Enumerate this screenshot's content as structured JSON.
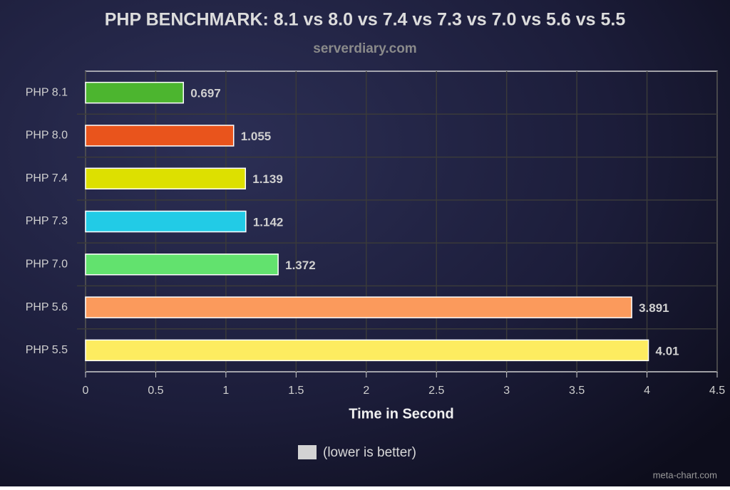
{
  "chart_data": {
    "type": "bar",
    "orientation": "horizontal",
    "title": "PHP BENCHMARK: 8.1 vs 8.0 vs 7.4 vs 7.3 vs 7.0 vs 5.6 vs 5.5",
    "subtitle": "serverdiary.com",
    "x_label": "Time in Second",
    "categories": [
      "PHP 8.1",
      "PHP 8.0",
      "PHP 7.4",
      "PHP 7.3",
      "PHP 7.0",
      "PHP 5.6",
      "PHP 5.5"
    ],
    "series": [
      {
        "name": "(lower is better)",
        "color": "#d3d3d3",
        "values": [
          0.697,
          1.055,
          1.139,
          1.142,
          1.372,
          3.891,
          4.01
        ],
        "colors": [
          "#4cb52f",
          "#e9541c",
          "#dde000",
          "#22cbe6",
          "#62e26e",
          "#fb9a5c",
          "#fdec60"
        ]
      }
    ],
    "xlim": [
      0,
      4.5
    ],
    "xticks": [
      0,
      0.5,
      1,
      1.5,
      2,
      2.5,
      3,
      3.5,
      4,
      4.5
    ],
    "grid": true,
    "legend": "bottom",
    "watermark": "meta-chart.com"
  }
}
